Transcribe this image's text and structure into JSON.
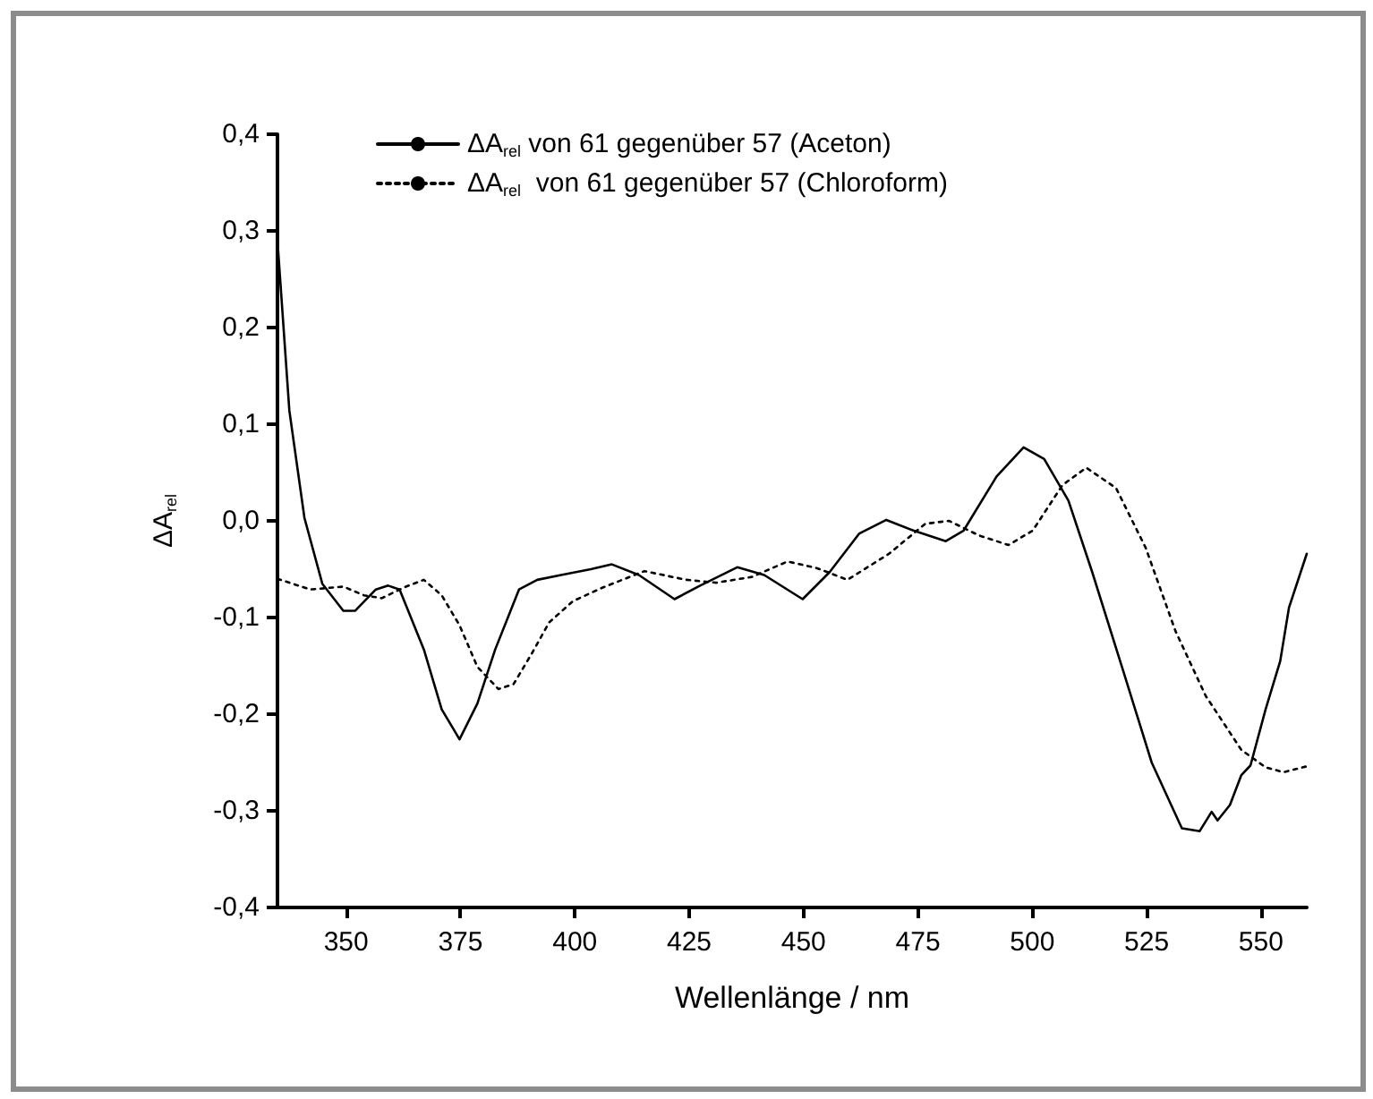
{
  "chart_data": {
    "type": "line",
    "xlabel": "Wellenlänge / nm",
    "ylabel": "ΔA$_{rel}$",
    "xlim": [
      335,
      560
    ],
    "xticks": [
      350,
      375,
      400,
      425,
      450,
      475,
      500,
      525,
      550
    ],
    "ylim": [
      -0.4,
      0.4
    ],
    "yticks": [
      {
        "value": -0.4,
        "label": "-0,4"
      },
      {
        "value": -0.3,
        "label": "-0,3"
      },
      {
        "value": -0.2,
        "label": "-0,2"
      },
      {
        "value": -0.1,
        "label": "-0,1"
      },
      {
        "value": 0,
        "label": "0,0"
      },
      {
        "value": 0.1,
        "label": "0,1"
      },
      {
        "value": 0.2,
        "label": "0,2"
      },
      {
        "value": 0.3,
        "label": "0,3"
      },
      {
        "value": 0.4,
        "label": "0,4"
      }
    ],
    "legend": "top left",
    "grid": false,
    "marker": "none",
    "series": [
      {
        "name": "ΔA$_{rel}$ von 61 gegenüber 57 (Aceton)",
        "color": "#000000",
        "line_style": "solid",
        "x": [
          335,
          337.6,
          340.9,
          344.8,
          349.4,
          352.0,
          356.5,
          359.2,
          361.7,
          367.0,
          370.9,
          374.8,
          378.7,
          382.6,
          387.8,
          391.8,
          397.0,
          403.5,
          408.1,
          414.0,
          421.8,
          427.0,
          435.5,
          441.4,
          449.8,
          455.7,
          462.2,
          468.1,
          474.0,
          481.1,
          485.0,
          492.2,
          498.1,
          502.6,
          507.9,
          513.1,
          519.6,
          526.1,
          532.7,
          536.6,
          539.2,
          540.5,
          543.2,
          545.7,
          547.7,
          551.0,
          554.2,
          556.1,
          560
        ],
        "values": [
          0.29,
          0.114,
          0.003,
          -0.065,
          -0.093,
          -0.093,
          -0.071,
          -0.067,
          -0.071,
          -0.133,
          -0.195,
          -0.226,
          -0.189,
          -0.133,
          -0.071,
          -0.061,
          -0.056,
          -0.05,
          -0.045,
          -0.056,
          -0.081,
          -0.068,
          -0.048,
          -0.056,
          -0.081,
          -0.053,
          -0.013,
          0.001,
          -0.01,
          -0.021,
          -0.01,
          0.046,
          0.076,
          0.064,
          0.021,
          -0.053,
          -0.151,
          -0.25,
          -0.318,
          -0.321,
          -0.301,
          -0.31,
          -0.294,
          -0.263,
          -0.253,
          -0.195,
          -0.145,
          -0.09,
          -0.034
        ]
      },
      {
        "name": "ΔA$_{rel}$  von 61 gegenüber 57 (Chloroform)",
        "color": "#000000",
        "line_style": "dotted",
        "x": [
          335,
          337.0,
          342.2,
          349.4,
          353.9,
          357.8,
          363.1,
          367.0,
          370.9,
          374.8,
          378.7,
          383.3,
          386.6,
          390.5,
          394.4,
          399.6,
          406.1,
          415.2,
          424.4,
          430.9,
          438.7,
          446.5,
          453.0,
          459.6,
          468.7,
          476.6,
          481.8,
          488.3,
          494.8,
          500.1,
          506.6,
          511.8,
          518.3,
          524.8,
          531.3,
          537.9,
          545.7,
          551.0,
          554.9,
          560
        ],
        "values": [
          -0.06,
          -0.063,
          -0.071,
          -0.068,
          -0.077,
          -0.08,
          -0.068,
          -0.061,
          -0.077,
          -0.108,
          -0.151,
          -0.174,
          -0.169,
          -0.138,
          -0.105,
          -0.083,
          -0.069,
          -0.052,
          -0.061,
          -0.064,
          -0.058,
          -0.042,
          -0.049,
          -0.061,
          -0.034,
          -0.003,
          0,
          -0.015,
          -0.025,
          -0.01,
          0.037,
          0.055,
          0.034,
          -0.028,
          -0.114,
          -0.181,
          -0.237,
          -0.255,
          -0.26,
          -0.254
        ]
      }
    ]
  }
}
